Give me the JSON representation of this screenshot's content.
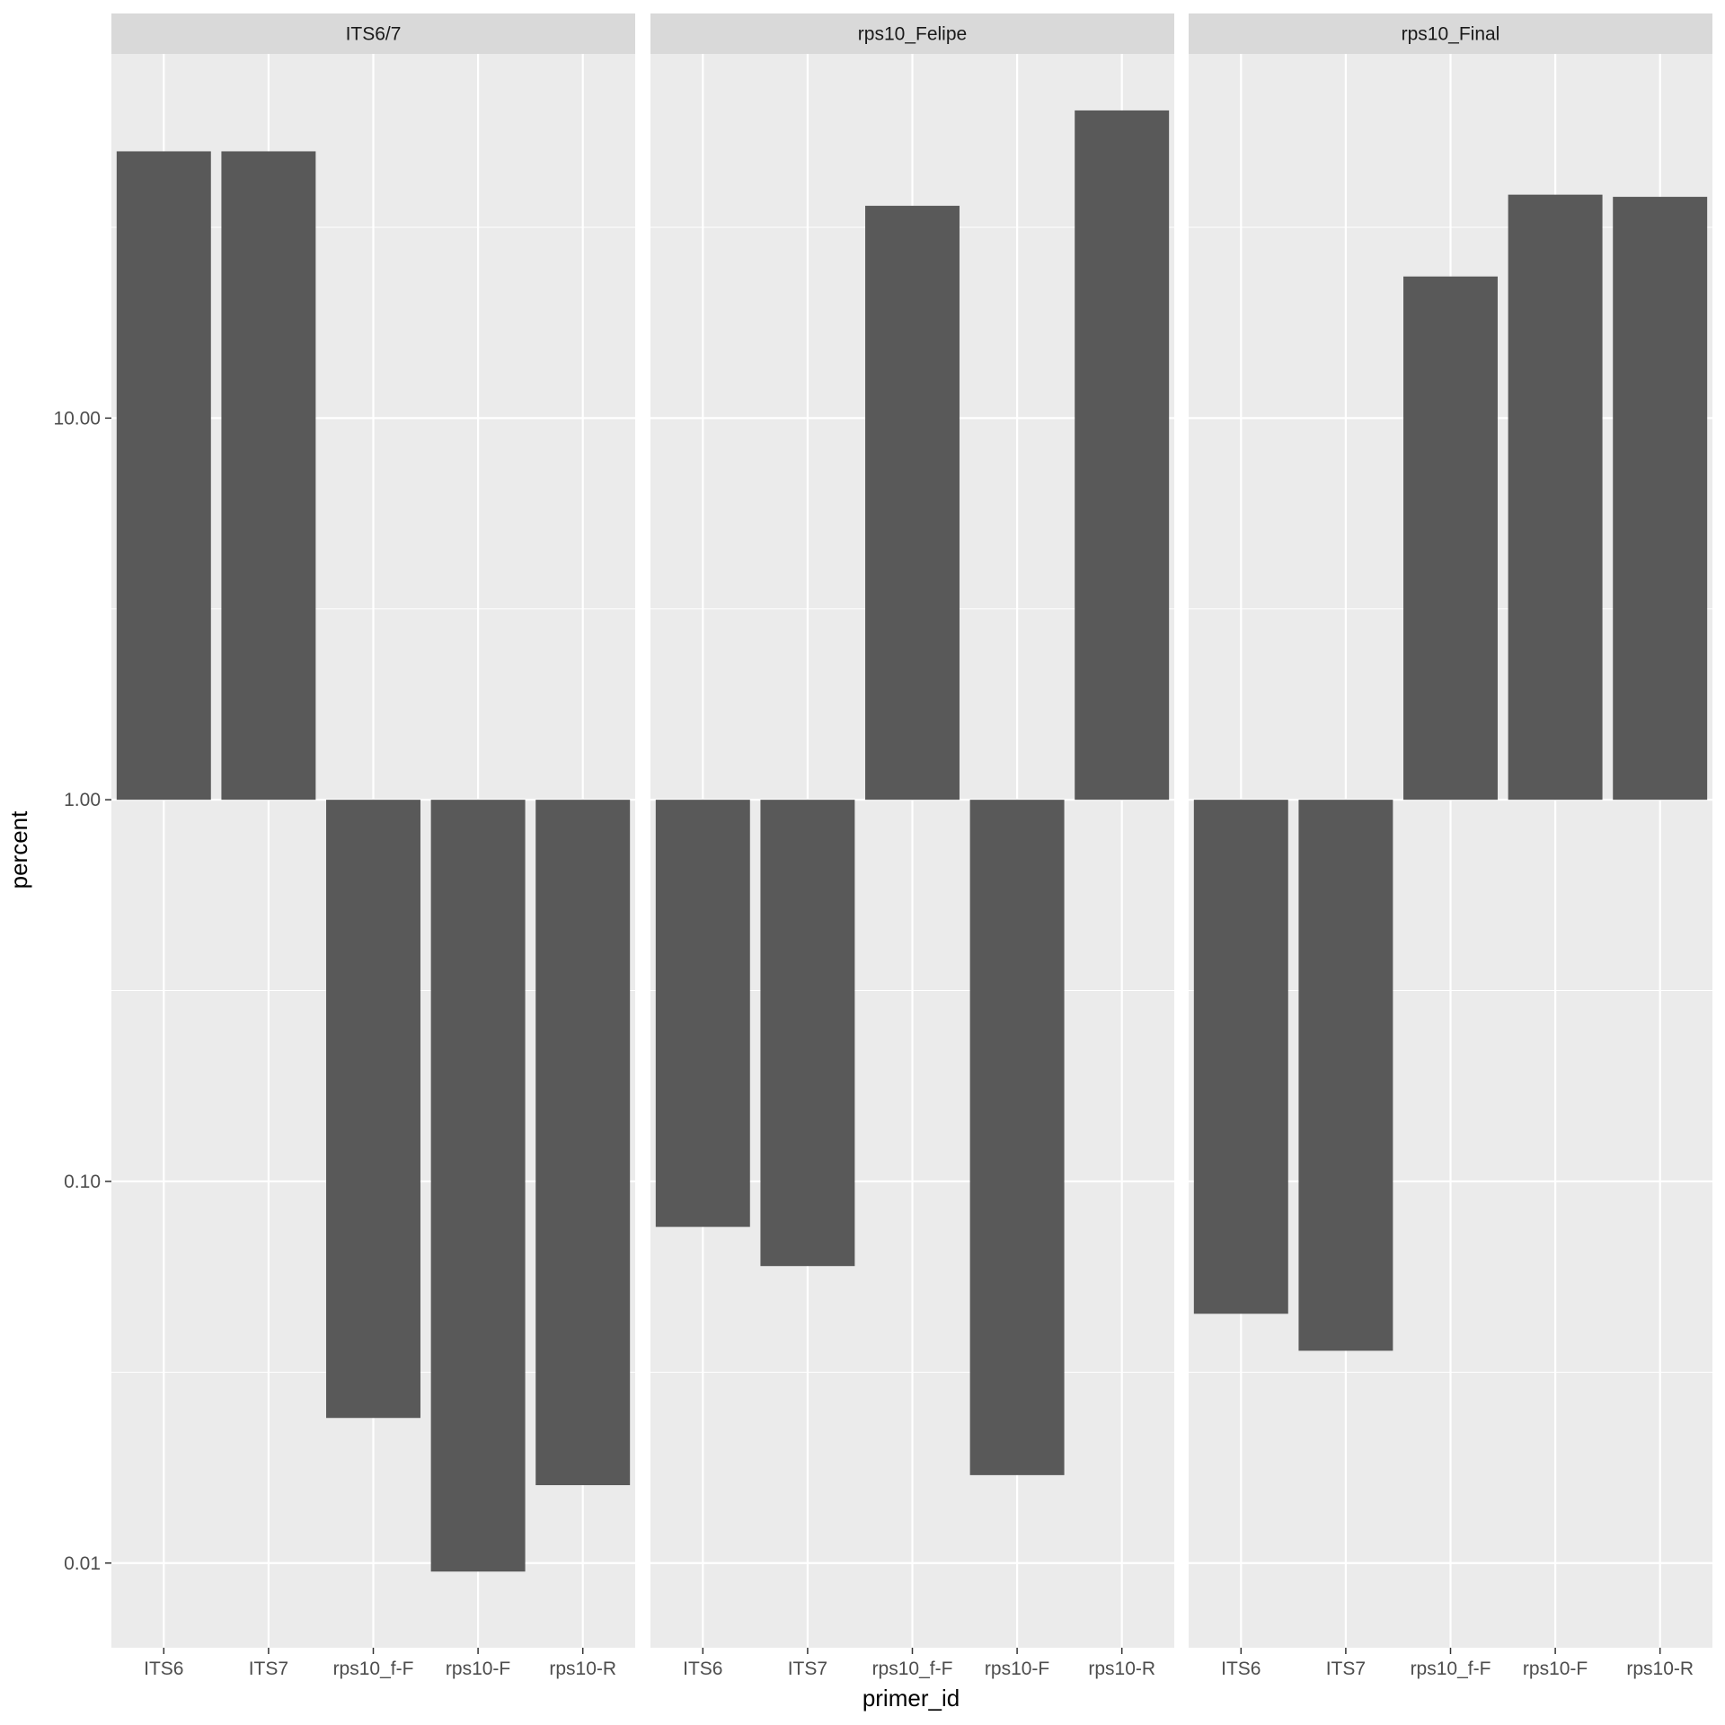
{
  "chart_data": {
    "type": "bar",
    "facet_by": "panel",
    "xlabel": "primer_id",
    "ylabel": "percent",
    "y_scale": "log10",
    "ylim": [
      0.006,
      90
    ],
    "y_baseline": 1,
    "y_ticks": [
      0.01,
      0.1,
      1,
      10
    ],
    "y_tick_labels": [
      "0.01",
      "0.10",
      "1.00",
      "10.00"
    ],
    "grid": true,
    "bar_color": "#595959",
    "panel_background": "#ebebeb",
    "strip_background": "#d9d9d9",
    "categories": [
      "ITS6",
      "ITS7",
      "rps10_f-F",
      "rps10-F",
      "rps10-R"
    ],
    "panels": [
      {
        "name": "ITS6/7",
        "values": [
          50,
          50,
          0.024,
          0.0095,
          0.016
        ]
      },
      {
        "name": "rps10_Felipe",
        "values": [
          0.076,
          0.06,
          36,
          0.017,
          64
        ]
      },
      {
        "name": "rps10_Final",
        "values": [
          0.045,
          0.036,
          23.5,
          38.5,
          38
        ]
      }
    ]
  }
}
